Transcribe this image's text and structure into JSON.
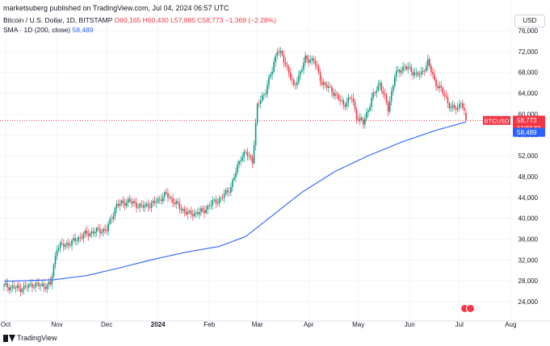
{
  "publisher": "marketsuberg published on TradingView.com, Jul 04, 2024 06:57 UTC",
  "symbol_line": {
    "title": "Bitcoin / U.S. Dollar, 1D, BITSTAMP",
    "ohlc": "O60,165 H60,430 L57,885 C58,773",
    "change": "−1,369 (−2.28%)"
  },
  "sma_line": {
    "label": "SMA · 1D (200, close)",
    "value": "58,489"
  },
  "currency_button": "USD",
  "branding": "TradingView",
  "colors": {
    "up": "#089981",
    "down": "#f23645",
    "sma": "#2962ff",
    "grid": "#f0f3fa",
    "dotted": "#f23645"
  },
  "chart_data": {
    "type": "candlestick",
    "symbol": "BTCUSD",
    "interval": "1D",
    "ylim": [
      22000,
      77000
    ],
    "y_ticks": [
      "76,000",
      "72,000",
      "68,000",
      "64,000",
      "60,000",
      "56,000",
      "52,000",
      "48,000",
      "44,000",
      "40,000",
      "36,000",
      "32,000",
      "28,000",
      "24,000"
    ],
    "x_ticks": [
      "Oct",
      "Nov",
      "Dec",
      "2024",
      "Feb",
      "Mar",
      "Apr",
      "May",
      "Jun",
      "Jul",
      "Aug"
    ],
    "x_tick_days": [
      1,
      32,
      62,
      93,
      124,
      153,
      184,
      214,
      245,
      275,
      306
    ],
    "price_label": {
      "symbol": "BTCUSD",
      "value": "58,773",
      "countdown": "17:02:32"
    },
    "sma_label": "58,489",
    "close_keypoints": [
      [
        0,
        27000
      ],
      [
        10,
        26500
      ],
      [
        18,
        27300
      ],
      [
        24,
        27000
      ],
      [
        28,
        27300
      ],
      [
        32,
        34500
      ],
      [
        40,
        35200
      ],
      [
        48,
        36800
      ],
      [
        55,
        37500
      ],
      [
        62,
        37800
      ],
      [
        68,
        42500
      ],
      [
        75,
        43300
      ],
      [
        83,
        42200
      ],
      [
        90,
        42800
      ],
      [
        98,
        44600
      ],
      [
        107,
        41800
      ],
      [
        112,
        40800
      ],
      [
        120,
        41300
      ],
      [
        126,
        43000
      ],
      [
        131,
        43700
      ],
      [
        137,
        46000
      ],
      [
        143,
        51800
      ],
      [
        146,
        52500
      ],
      [
        150,
        51000
      ],
      [
        153,
        61500
      ],
      [
        158,
        64500
      ],
      [
        162,
        68500
      ],
      [
        165,
        72400
      ],
      [
        168,
        71000
      ],
      [
        172,
        68200
      ],
      [
        175,
        65000
      ],
      [
        182,
        70500
      ],
      [
        187,
        70400
      ],
      [
        192,
        66000
      ],
      [
        198,
        64500
      ],
      [
        205,
        61800
      ],
      [
        210,
        63200
      ],
      [
        213,
        59500
      ],
      [
        217,
        58200
      ],
      [
        222,
        62900
      ],
      [
        227,
        66000
      ],
      [
        232,
        60900
      ],
      [
        236,
        67400
      ],
      [
        242,
        69200
      ],
      [
        247,
        68000
      ],
      [
        252,
        67500
      ],
      [
        256,
        70200
      ],
      [
        260,
        66200
      ],
      [
        264,
        64800
      ],
      [
        267,
        62800
      ],
      [
        270,
        61300
      ],
      [
        274,
        60900
      ],
      [
        276,
        62700
      ],
      [
        278,
        60200
      ],
      [
        279,
        58773
      ]
    ],
    "sma_keypoints": [
      [
        0,
        27900
      ],
      [
        30,
        28200
      ],
      [
        50,
        29000
      ],
      [
        70,
        30500
      ],
      [
        90,
        32100
      ],
      [
        110,
        33500
      ],
      [
        130,
        34600
      ],
      [
        146,
        36500
      ],
      [
        160,
        40000
      ],
      [
        180,
        45000
      ],
      [
        200,
        49000
      ],
      [
        220,
        52000
      ],
      [
        240,
        54600
      ],
      [
        260,
        56800
      ],
      [
        279,
        58489
      ]
    ]
  }
}
